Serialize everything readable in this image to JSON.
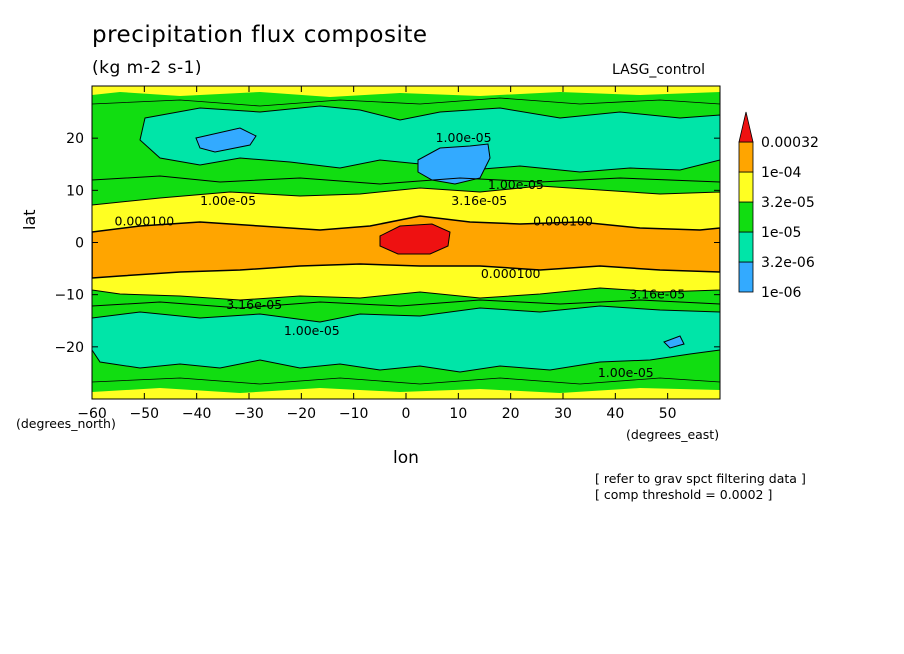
{
  "chart_data": {
    "type": "heatmap",
    "title": "precipitation flux composite",
    "units": "(kg m-2 s-1)",
    "source_label": "LASG_control",
    "xlabel": "lon",
    "ylabel": "lat",
    "x_unit_label": "(degrees_east)",
    "y_unit_label": "(degrees_north)",
    "xlim": [
      -60,
      60
    ],
    "ylim": [
      -30,
      30
    ],
    "x_ticks": [
      -60,
      -50,
      -40,
      -30,
      -20,
      -10,
      0,
      10,
      20,
      30,
      40,
      50
    ],
    "y_ticks": [
      -20,
      -10,
      0,
      10,
      20
    ],
    "colorbar": {
      "levels": [
        "1e-06",
        "3.2e-06",
        "1e-05",
        "3.2e-05",
        "1e-04",
        "0.00032"
      ],
      "colors": [
        "#33aaff",
        "#00e5a8",
        "#11dd11",
        "#ffff22",
        "#ffa500",
        "#ee1111"
      ]
    },
    "contour_labels": [
      {
        "text": "1.00e-05",
        "lon": 11,
        "lat": 20
      },
      {
        "text": "1.00e-05",
        "lon": -34,
        "lat": 8
      },
      {
        "text": "1.00e-05",
        "lon": 21,
        "lat": 11
      },
      {
        "text": "3.16e-05",
        "lon": 14,
        "lat": 8
      },
      {
        "text": "0.000100",
        "lon": -50,
        "lat": 4
      },
      {
        "text": "0.000100",
        "lon": 30,
        "lat": 4
      },
      {
        "text": "0.000100",
        "lon": 20,
        "lat": -6
      },
      {
        "text": "3.16e-05",
        "lon": -29,
        "lat": -12
      },
      {
        "text": "3.16e-05",
        "lon": 48,
        "lat": -10
      },
      {
        "text": "1.00e-05",
        "lon": -18,
        "lat": -17
      },
      {
        "text": "1.00e-05",
        "lon": 42,
        "lat": -25
      }
    ]
  },
  "notes": {
    "line1": "[ refer to grav spct filtering data ]",
    "line2": "[ comp threshold = 0.0002 ]"
  }
}
